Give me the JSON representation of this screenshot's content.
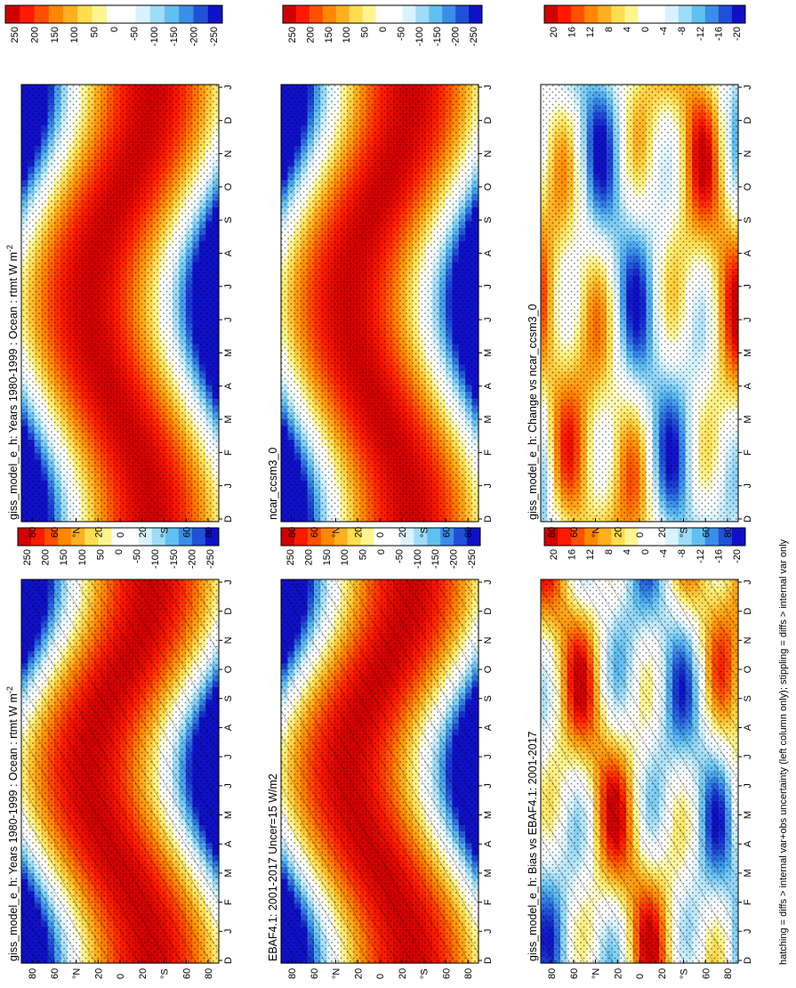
{
  "figure": {
    "footer": "hatching = diffs > internal var+obs uncertainty (left column only); stippling = diffs > internal var only"
  },
  "colorbars": {
    "main": {
      "labels": [
        "250",
        "200",
        "150",
        "100",
        "50",
        "0",
        "-50",
        "-100",
        "-150",
        "-200",
        "-250"
      ],
      "colors": [
        "#d10000",
        "#ff1a00",
        "#ff5000",
        "#ff8800",
        "#ffb020",
        "#ffdd50",
        "#fff590",
        "#ffffff",
        "#ffffff",
        "#d8f3ff",
        "#9fdcf8",
        "#60c0f0",
        "#3a8ee8",
        "#2050d8",
        "#1010c8"
      ]
    },
    "diff": {
      "labels": [
        "20",
        "16",
        "12",
        "8",
        "4",
        "0",
        "-4",
        "-8",
        "-12",
        "-16",
        "-20"
      ],
      "colors": [
        "#d10000",
        "#ff1a00",
        "#ff5000",
        "#ff8800",
        "#ffb020",
        "#ffdd50",
        "#fff590",
        "#ffffff",
        "#ffffff",
        "#d8f3ff",
        "#9fdcf8",
        "#60c0f0",
        "#3a8ee8",
        "#2050d8",
        "#1010c8"
      ]
    }
  },
  "axes": {
    "lat_labels": [
      "80",
      "60",
      "°N",
      "20",
      "0",
      "20",
      "°S",
      "60",
      "80"
    ],
    "month_labels": [
      "D",
      "J",
      "F",
      "M",
      "A",
      "M",
      "J",
      "J",
      "A",
      "S",
      "O",
      "N",
      "D",
      "J"
    ]
  },
  "panels": [
    {
      "id": "r1c1",
      "title": "giss_model_e_h: Years 1980-1999 : Ocean : rtmt W m",
      "sup": "-2",
      "kind": "climo",
      "hatch": true
    },
    {
      "id": "r2c1",
      "title": "EBAF4.1: 2001-2017 Uncer=15 W/m2",
      "sup": "",
      "kind": "climo",
      "hatch": true
    },
    {
      "id": "r3c1",
      "title": "giss_model_e_h: Bias vs EBAF4.1: 2001-2017",
      "sup": "",
      "kind": "diff",
      "hatch": true
    },
    {
      "id": "r1c2",
      "title": "giss_model_e_h: Years 1980-1999 : Ocean : rtmt W m",
      "sup": "-2",
      "kind": "climo",
      "hatch": false
    },
    {
      "id": "r2c2",
      "title": "ncar_ccsm3_0",
      "sup": "",
      "kind": "climo",
      "hatch": false
    },
    {
      "id": "r3c2",
      "title": "giss_model_e_h: Change vs ncar_ccsm3_0",
      "sup": "",
      "kind": "diff",
      "hatch": false
    }
  ],
  "chart_data": {
    "type": "heatmap",
    "description_units": "W m-2",
    "x": "latitude (80N to 80S)",
    "y": "month (Dec to Jan, 14 ticks)",
    "panels": [
      {
        "title": "giss_model_e_h: Years 1980-1999 : Ocean : rtmt W m-2",
        "zlim": [
          -250,
          250
        ]
      },
      {
        "title": "EBAF4.1: 2001-2017 Uncer=15 W/m2",
        "zlim": [
          -250,
          250
        ]
      },
      {
        "title": "giss_model_e_h: Bias vs EBAF4.1: 2001-2017",
        "zlim": [
          -20,
          20
        ]
      },
      {
        "title": "ncar_ccsm3_0",
        "zlim": [
          -250,
          250
        ]
      },
      {
        "title": "giss_model_e_h: Change vs ncar_ccsm3_0",
        "zlim": [
          -20,
          20
        ]
      }
    ]
  }
}
